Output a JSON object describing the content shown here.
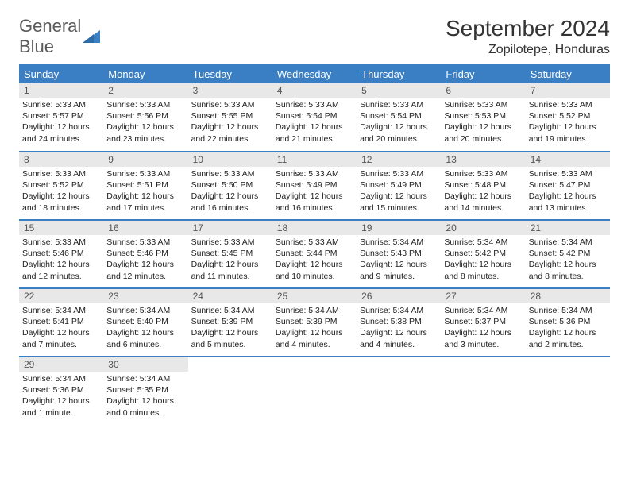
{
  "logo": {
    "text1": "General",
    "text2": "Blue"
  },
  "title": "September 2024",
  "location": "Zopilotepe, Honduras",
  "colors": {
    "accent": "#3a7fc4",
    "header_bg": "#3a7fc4",
    "header_fg": "#ffffff",
    "daynum_bg": "#e8e8e8",
    "daynum_fg": "#555555",
    "text": "#222222",
    "logo_gray": "#5a5a5a"
  },
  "day_names": [
    "Sunday",
    "Monday",
    "Tuesday",
    "Wednesday",
    "Thursday",
    "Friday",
    "Saturday"
  ],
  "weeks": [
    [
      {
        "n": "1",
        "sr": "5:33 AM",
        "ss": "5:57 PM",
        "dl": "12 hours and 24 minutes."
      },
      {
        "n": "2",
        "sr": "5:33 AM",
        "ss": "5:56 PM",
        "dl": "12 hours and 23 minutes."
      },
      {
        "n": "3",
        "sr": "5:33 AM",
        "ss": "5:55 PM",
        "dl": "12 hours and 22 minutes."
      },
      {
        "n": "4",
        "sr": "5:33 AM",
        "ss": "5:54 PM",
        "dl": "12 hours and 21 minutes."
      },
      {
        "n": "5",
        "sr": "5:33 AM",
        "ss": "5:54 PM",
        "dl": "12 hours and 20 minutes."
      },
      {
        "n": "6",
        "sr": "5:33 AM",
        "ss": "5:53 PM",
        "dl": "12 hours and 20 minutes."
      },
      {
        "n": "7",
        "sr": "5:33 AM",
        "ss": "5:52 PM",
        "dl": "12 hours and 19 minutes."
      }
    ],
    [
      {
        "n": "8",
        "sr": "5:33 AM",
        "ss": "5:52 PM",
        "dl": "12 hours and 18 minutes."
      },
      {
        "n": "9",
        "sr": "5:33 AM",
        "ss": "5:51 PM",
        "dl": "12 hours and 17 minutes."
      },
      {
        "n": "10",
        "sr": "5:33 AM",
        "ss": "5:50 PM",
        "dl": "12 hours and 16 minutes."
      },
      {
        "n": "11",
        "sr": "5:33 AM",
        "ss": "5:49 PM",
        "dl": "12 hours and 16 minutes."
      },
      {
        "n": "12",
        "sr": "5:33 AM",
        "ss": "5:49 PM",
        "dl": "12 hours and 15 minutes."
      },
      {
        "n": "13",
        "sr": "5:33 AM",
        "ss": "5:48 PM",
        "dl": "12 hours and 14 minutes."
      },
      {
        "n": "14",
        "sr": "5:33 AM",
        "ss": "5:47 PM",
        "dl": "12 hours and 13 minutes."
      }
    ],
    [
      {
        "n": "15",
        "sr": "5:33 AM",
        "ss": "5:46 PM",
        "dl": "12 hours and 12 minutes."
      },
      {
        "n": "16",
        "sr": "5:33 AM",
        "ss": "5:46 PM",
        "dl": "12 hours and 12 minutes."
      },
      {
        "n": "17",
        "sr": "5:33 AM",
        "ss": "5:45 PM",
        "dl": "12 hours and 11 minutes."
      },
      {
        "n": "18",
        "sr": "5:33 AM",
        "ss": "5:44 PM",
        "dl": "12 hours and 10 minutes."
      },
      {
        "n": "19",
        "sr": "5:34 AM",
        "ss": "5:43 PM",
        "dl": "12 hours and 9 minutes."
      },
      {
        "n": "20",
        "sr": "5:34 AM",
        "ss": "5:42 PM",
        "dl": "12 hours and 8 minutes."
      },
      {
        "n": "21",
        "sr": "5:34 AM",
        "ss": "5:42 PM",
        "dl": "12 hours and 8 minutes."
      }
    ],
    [
      {
        "n": "22",
        "sr": "5:34 AM",
        "ss": "5:41 PM",
        "dl": "12 hours and 7 minutes."
      },
      {
        "n": "23",
        "sr": "5:34 AM",
        "ss": "5:40 PM",
        "dl": "12 hours and 6 minutes."
      },
      {
        "n": "24",
        "sr": "5:34 AM",
        "ss": "5:39 PM",
        "dl": "12 hours and 5 minutes."
      },
      {
        "n": "25",
        "sr": "5:34 AM",
        "ss": "5:39 PM",
        "dl": "12 hours and 4 minutes."
      },
      {
        "n": "26",
        "sr": "5:34 AM",
        "ss": "5:38 PM",
        "dl": "12 hours and 4 minutes."
      },
      {
        "n": "27",
        "sr": "5:34 AM",
        "ss": "5:37 PM",
        "dl": "12 hours and 3 minutes."
      },
      {
        "n": "28",
        "sr": "5:34 AM",
        "ss": "5:36 PM",
        "dl": "12 hours and 2 minutes."
      }
    ],
    [
      {
        "n": "29",
        "sr": "5:34 AM",
        "ss": "5:36 PM",
        "dl": "12 hours and 1 minute."
      },
      {
        "n": "30",
        "sr": "5:34 AM",
        "ss": "5:35 PM",
        "dl": "12 hours and 0 minutes."
      },
      null,
      null,
      null,
      null,
      null
    ]
  ],
  "labels": {
    "sunrise": "Sunrise: ",
    "sunset": "Sunset: ",
    "daylight": "Daylight: "
  }
}
